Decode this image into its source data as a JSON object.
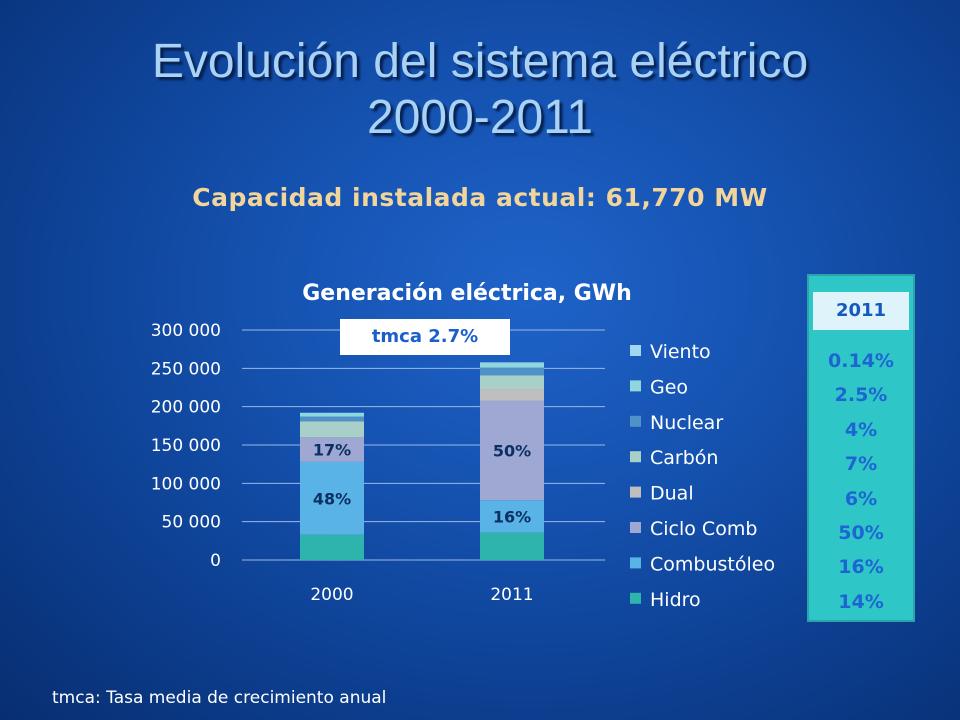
{
  "slide": {
    "title_line1": "Evolución del sistema eléctrico",
    "title_line2": "2000-2011",
    "subtitle": "Capacidad instalada actual: 61,770 MW",
    "footnote": "tmca: Tasa media de crecimiento anual",
    "tmca_label": "tmca 2.7%"
  },
  "side_panel": {
    "year": "2011",
    "shares": [
      "0.14%",
      "2.5%",
      "4%",
      "7%",
      "6%",
      "50%",
      "16%",
      "14%"
    ]
  },
  "chart_data": {
    "type": "bar",
    "stacked": true,
    "title": "Generación eléctrica, GWh",
    "categories": [
      "2000",
      "2011"
    ],
    "y_ticks": [
      "0",
      "50 000",
      "100 000",
      "150 000",
      "200 000",
      "250 000",
      "300 000"
    ],
    "ylim": [
      0,
      300000
    ],
    "grid": true,
    "legend_position": "right",
    "series": [
      {
        "name": "Hidro",
        "color": "#2fb4ad",
        "values": [
          33000,
          36000
        ]
      },
      {
        "name": "Combustóleo",
        "color": "#5ab3e6",
        "values": [
          95000,
          42000
        ]
      },
      {
        "name": "Ciclo Comb",
        "color": "#9ea8d2",
        "values": [
          32000,
          130000
        ]
      },
      {
        "name": "Dual",
        "color": "#bfbfbf",
        "values": [
          0,
          15000
        ]
      },
      {
        "name": "Carbón",
        "color": "#a9cfc9",
        "values": [
          21000,
          18000
        ]
      },
      {
        "name": "Nuclear",
        "color": "#4f92c7",
        "values": [
          6000,
          10000
        ]
      },
      {
        "name": "Geo",
        "color": "#8fd6df",
        "values": [
          5000,
          6500
        ]
      },
      {
        "name": "Viento",
        "color": "#9fd8f0",
        "values": [
          100,
          400
        ]
      }
    ],
    "data_labels": [
      {
        "category": "2000",
        "series": "Ciclo Comb",
        "text": "17%"
      },
      {
        "category": "2000",
        "series": "Combustóleo",
        "text": "48%"
      },
      {
        "category": "2011",
        "series": "Ciclo Comb",
        "text": "50%"
      },
      {
        "category": "2011",
        "series": "Combustóleo",
        "text": "16%"
      }
    ]
  }
}
